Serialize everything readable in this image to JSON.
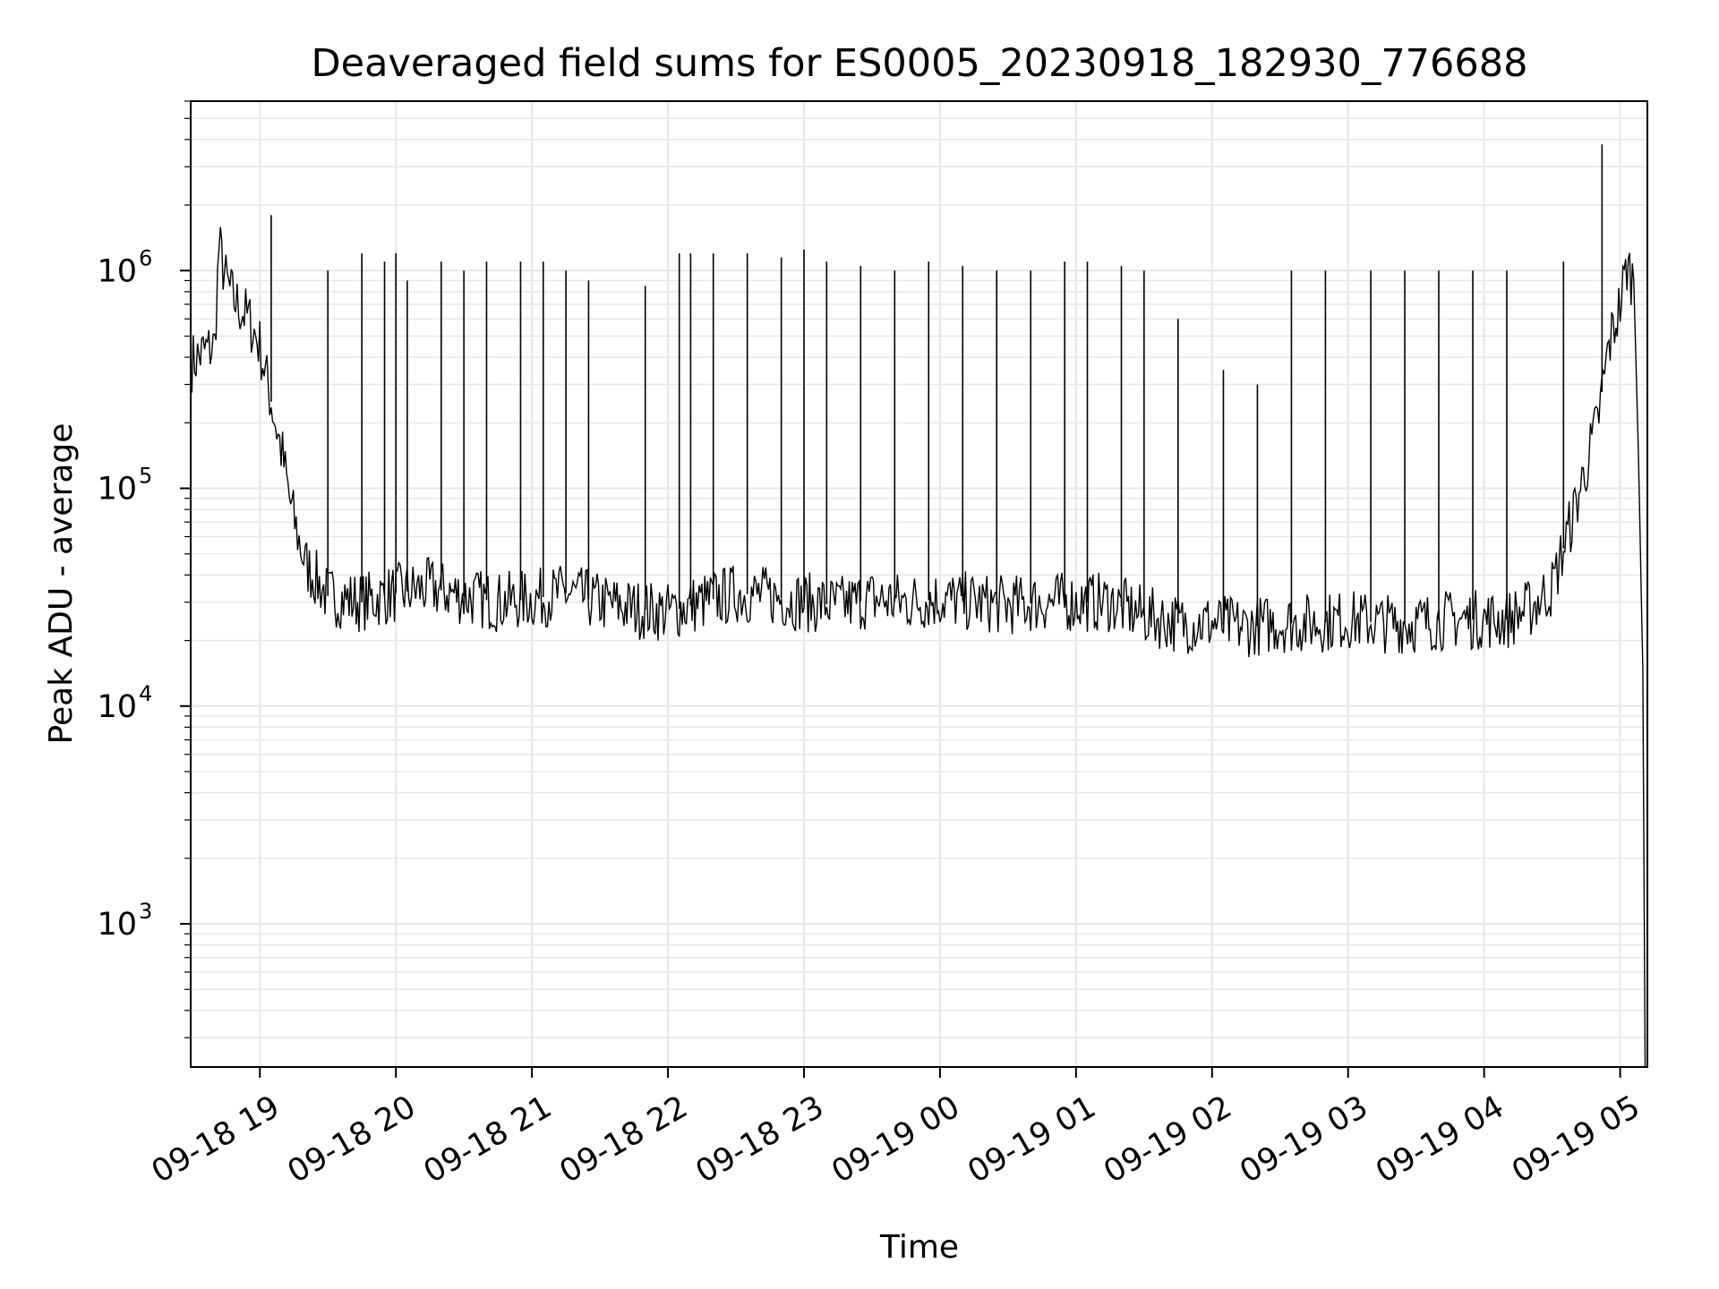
{
  "chart_data": {
    "type": "line",
    "title": "Deaveraged field sums for ES0005_20230918_182930_776688",
    "xlabel": "Time",
    "ylabel": "Peak ADU - average",
    "yscale": "log",
    "ylim": [
      220,
      6000000
    ],
    "xlim": [
      "2023-09-18 18:29:30",
      "2023-09-19 05:12:00"
    ],
    "grid": true,
    "line_color": "#000000",
    "grid_color": "#e6e6e6",
    "x_ticks": [
      {
        "value": "2023-09-18 19:00:00",
        "label": "09-18 19"
      },
      {
        "value": "2023-09-18 20:00:00",
        "label": "09-18 20"
      },
      {
        "value": "2023-09-18 21:00:00",
        "label": "09-18 21"
      },
      {
        "value": "2023-09-18 22:00:00",
        "label": "09-18 22"
      },
      {
        "value": "2023-09-18 23:00:00",
        "label": "09-18 23"
      },
      {
        "value": "2023-09-19 00:00:00",
        "label": "09-19 00"
      },
      {
        "value": "2023-09-19 01:00:00",
        "label": "09-19 01"
      },
      {
        "value": "2023-09-19 02:00:00",
        "label": "09-19 02"
      },
      {
        "value": "2023-09-19 03:00:00",
        "label": "09-19 03"
      },
      {
        "value": "2023-09-19 04:00:00",
        "label": "09-19 04"
      },
      {
        "value": "2023-09-19 05:00:00",
        "label": "09-19 05"
      }
    ],
    "y_ticks": [
      {
        "value": 1000,
        "base": "10",
        "exp": "3"
      },
      {
        "value": 10000,
        "base": "10",
        "exp": "4"
      },
      {
        "value": 100000,
        "base": "10",
        "exp": "5"
      },
      {
        "value": 1000000,
        "base": "10",
        "exp": "6"
      }
    ],
    "series": [
      {
        "x": [
          "2023-09-18 18:30:00",
          "2023-09-18 18:35:00",
          "2023-09-18 18:40:00",
          "2023-09-18 18:42:00",
          "2023-09-18 18:45:00",
          "2023-09-18 18:48:00",
          "2023-09-18 18:50:00",
          "2023-09-18 18:55:00",
          "2023-09-18 19:00:00",
          "2023-09-18 19:05:00",
          "2023-09-18 19:10:00",
          "2023-09-18 19:13:00",
          "2023-09-18 19:16:00",
          "2023-09-18 19:20:00",
          "2023-09-18 19:30:00",
          "2023-09-18 19:45:00",
          "2023-09-18 20:00:00",
          "2023-09-18 20:15:00",
          "2023-09-18 20:30:00",
          "2023-09-18 20:45:00",
          "2023-09-18 21:00:00",
          "2023-09-18 21:15:00",
          "2023-09-18 21:30:00",
          "2023-09-18 21:45:00",
          "2023-09-18 22:00:00",
          "2023-09-18 22:15:00",
          "2023-09-18 22:30:00",
          "2023-09-18 22:45:00",
          "2023-09-18 23:00:00",
          "2023-09-18 23:15:00",
          "2023-09-18 23:30:00",
          "2023-09-18 23:45:00",
          "2023-09-19 00:00:00",
          "2023-09-19 00:15:00",
          "2023-09-19 00:30:00",
          "2023-09-19 00:45:00",
          "2023-09-19 01:00:00",
          "2023-09-19 01:15:00",
          "2023-09-19 01:30:00",
          "2023-09-19 01:45:00",
          "2023-09-19 02:00:00",
          "2023-09-19 02:15:00",
          "2023-09-19 02:30:00",
          "2023-09-19 02:45:00",
          "2023-09-19 03:00:00",
          "2023-09-19 03:15:00",
          "2023-09-19 03:30:00",
          "2023-09-19 03:45:00",
          "2023-09-19 04:00:00",
          "2023-09-19 04:10:00",
          "2023-09-19 04:20:00",
          "2023-09-19 04:30:00",
          "2023-09-19 04:40:00",
          "2023-09-19 04:50:00",
          "2023-09-19 04:55:00",
          "2023-09-19 05:00:00",
          "2023-09-19 05:03:00",
          "2023-09-19 05:06:00",
          "2023-09-19 05:08:00",
          "2023-09-19 05:10:00",
          "2023-09-19 05:11:00"
        ],
        "y": [
          380000,
          420000,
          450000,
          1300000,
          900000,
          750000,
          700000,
          600000,
          450000,
          250000,
          140000,
          90000,
          65000,
          45000,
          32000,
          30000,
          33000,
          35000,
          32000,
          30000,
          31000,
          33000,
          30000,
          28000,
          27000,
          30000,
          33000,
          32000,
          30000,
          29000,
          31000,
          30000,
          31000,
          30000,
          29000,
          30000,
          30000,
          30000,
          26000,
          24000,
          24000,
          23000,
          24000,
          24000,
          25000,
          24000,
          24000,
          25000,
          25000,
          25000,
          28000,
          35000,
          80000,
          200000,
          450000,
          700000,
          1050000,
          900000,
          150000,
          15000,
          220
        ]
      },
      {
        "x": [
          "2023-09-18 19:05:00",
          "2023-09-18 19:30:00",
          "2023-09-18 19:45:00",
          "2023-09-18 19:55:00",
          "2023-09-18 20:00:00",
          "2023-09-18 20:05:00",
          "2023-09-18 20:20:00",
          "2023-09-18 20:30:00",
          "2023-09-18 20:40:00",
          "2023-09-18 20:55:00",
          "2023-09-18 21:05:00",
          "2023-09-18 21:15:00",
          "2023-09-18 21:25:00",
          "2023-09-18 21:50:00",
          "2023-09-18 22:05:00",
          "2023-09-18 22:10:00",
          "2023-09-18 22:20:00",
          "2023-09-18 22:35:00",
          "2023-09-18 22:50:00",
          "2023-09-18 23:00:00",
          "2023-09-18 23:10:00",
          "2023-09-18 23:25:00",
          "2023-09-18 23:40:00",
          "2023-09-18 23:55:00",
          "2023-09-19 00:10:00",
          "2023-09-19 00:25:00",
          "2023-09-19 00:40:00",
          "2023-09-19 00:55:00",
          "2023-09-19 01:05:00",
          "2023-09-19 01:20:00",
          "2023-09-19 01:30:00",
          "2023-09-19 01:45:00",
          "2023-09-19 02:05:00",
          "2023-09-19 02:20:00",
          "2023-09-19 02:35:00",
          "2023-09-19 02:50:00",
          "2023-09-19 03:10:00",
          "2023-09-19 03:25:00",
          "2023-09-19 03:40:00",
          "2023-09-19 03:55:00",
          "2023-09-19 04:10:00",
          "2023-09-19 04:35:00",
          "2023-09-19 04:52:00"
        ],
        "y": [
          1800000,
          1000000,
          1200000,
          1100000,
          1200000,
          900000,
          1100000,
          1000000,
          1100000,
          1100000,
          1100000,
          1000000,
          900000,
          850000,
          1200000,
          1200000,
          1200000,
          1200000,
          1150000,
          1250000,
          1100000,
          1050000,
          1000000,
          1100000,
          1050000,
          1000000,
          1000000,
          1100000,
          1100000,
          1050000,
          1000000,
          600000,
          350000,
          300000,
          1000000,
          1000000,
          1000000,
          1000000,
          1000000,
          1000000,
          1000000,
          1100000,
          3800000
        ]
      }
    ]
  }
}
